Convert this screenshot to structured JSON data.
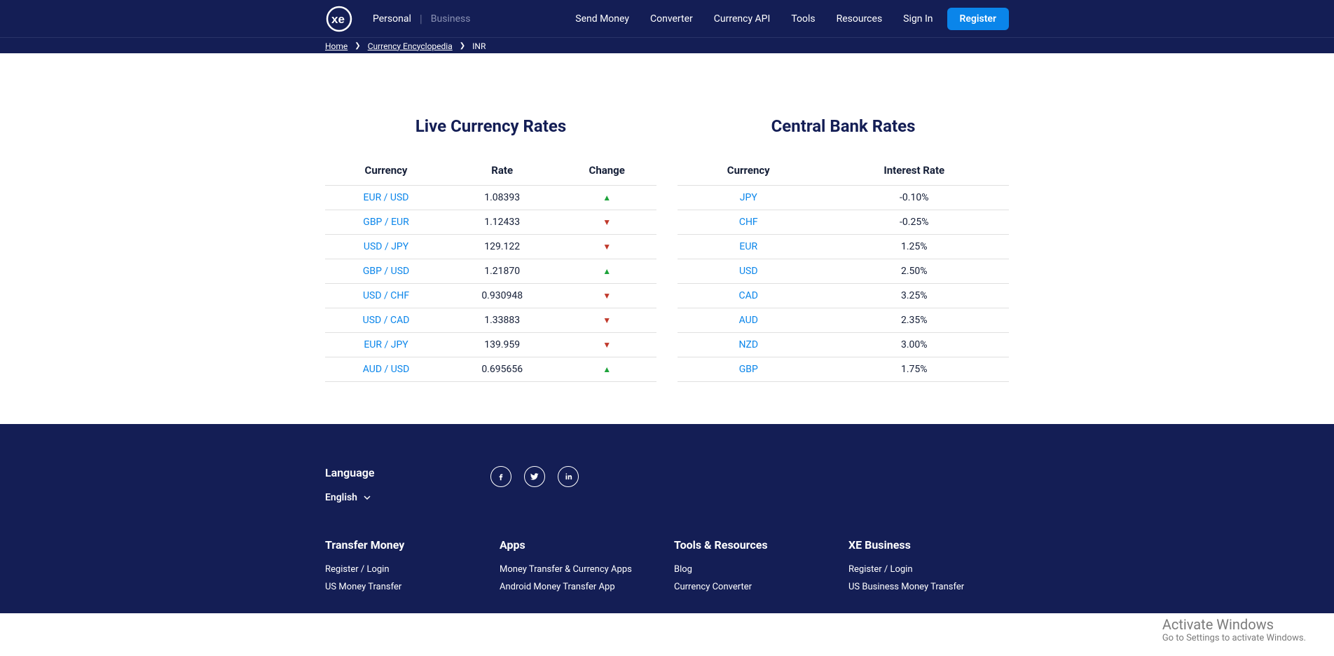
{
  "colors": {
    "brand_bg": "#141e55",
    "accent": "#0a85ea",
    "link": "#0a85ea",
    "up": "#1ea33b",
    "down": "#c0392b",
    "border": "#e0e0e0"
  },
  "header": {
    "logo_text": "xe",
    "segment_personal": "Personal",
    "segment_business": "Business",
    "nav": {
      "send_money": "Send Money",
      "converter": "Converter",
      "currency_api": "Currency API",
      "tools": "Tools",
      "resources": "Resources"
    },
    "auth": {
      "sign_in": "Sign In",
      "register": "Register"
    }
  },
  "breadcrumb": {
    "home": "Home",
    "encyclopedia": "Currency Encyclopedia",
    "current": "INR"
  },
  "live_rates": {
    "title": "Live Currency Rates",
    "columns": {
      "currency": "Currency",
      "rate": "Rate",
      "change": "Change"
    },
    "rows": [
      {
        "pair": "EUR / USD",
        "rate": "1.08393",
        "dir": "up"
      },
      {
        "pair": "GBP / EUR",
        "rate": "1.12433",
        "dir": "down"
      },
      {
        "pair": "USD / JPY",
        "rate": "129.122",
        "dir": "down"
      },
      {
        "pair": "GBP / USD",
        "rate": "1.21870",
        "dir": "up"
      },
      {
        "pair": "USD / CHF",
        "rate": "0.930948",
        "dir": "down"
      },
      {
        "pair": "USD / CAD",
        "rate": "1.33883",
        "dir": "down"
      },
      {
        "pair": "EUR / JPY",
        "rate": "139.959",
        "dir": "down"
      },
      {
        "pair": "AUD / USD",
        "rate": "0.695656",
        "dir": "up"
      }
    ]
  },
  "bank_rates": {
    "title": "Central Bank Rates",
    "columns": {
      "currency": "Currency",
      "rate": "Interest Rate"
    },
    "rows": [
      {
        "ccy": "JPY",
        "rate": "-0.10%"
      },
      {
        "ccy": "CHF",
        "rate": "-0.25%"
      },
      {
        "ccy": "EUR",
        "rate": "1.25%"
      },
      {
        "ccy": "USD",
        "rate": "2.50%"
      },
      {
        "ccy": "CAD",
        "rate": "3.25%"
      },
      {
        "ccy": "AUD",
        "rate": "2.35%"
      },
      {
        "ccy": "NZD",
        "rate": "3.00%"
      },
      {
        "ccy": "GBP",
        "rate": "1.75%"
      }
    ]
  },
  "footer": {
    "language_label": "Language",
    "language_value": "English",
    "cols": [
      {
        "title": "Transfer Money",
        "links": [
          "Register / Login",
          "US Money Transfer"
        ]
      },
      {
        "title": "Apps",
        "links": [
          "Money Transfer & Currency Apps",
          "Android Money Transfer App"
        ]
      },
      {
        "title": "Tools & Resources",
        "links": [
          "Blog",
          "Currency Converter"
        ]
      },
      {
        "title": "XE Business",
        "links": [
          "Register / Login",
          "US Business Money Transfer"
        ]
      }
    ]
  },
  "watermark": {
    "line1": "Activate Windows",
    "line2": "Go to Settings to activate Windows."
  }
}
